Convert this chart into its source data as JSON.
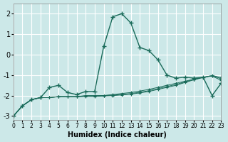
{
  "xlabel": "Humidex (Indice chaleur)",
  "bg_color": "#cce8e8",
  "grid_color": "#b8d8d8",
  "line_color": "#1a6b5a",
  "xlim": [
    0,
    23
  ],
  "ylim": [
    -3.2,
    2.5
  ],
  "yticks": [
    -3,
    -2,
    -1,
    0,
    1,
    2
  ],
  "series1_y": [
    -3.0,
    -2.5,
    -2.2,
    -2.1,
    -1.6,
    -1.5,
    -1.85,
    -1.95,
    -1.8,
    -1.8,
    0.4,
    1.85,
    2.0,
    1.55,
    0.35,
    0.2,
    -0.25,
    -1.0,
    -1.15,
    -1.1,
    -1.15,
    -1.1,
    -2.0,
    -1.4
  ],
  "series2_y": [
    -3.0,
    -2.5,
    -2.2,
    -2.1,
    -2.1,
    -2.05,
    -2.05,
    -2.05,
    -2.0,
    -2.0,
    -2.0,
    -1.95,
    -1.9,
    -1.85,
    -1.78,
    -1.7,
    -1.6,
    -1.5,
    -1.4,
    -1.3,
    -1.2,
    -1.1,
    -1.05,
    -1.25
  ],
  "series3_y": [
    -3.0,
    -2.5,
    -2.2,
    -2.1,
    -2.1,
    -2.05,
    -2.05,
    -2.05,
    -2.02,
    -2.02,
    -2.0,
    -1.98,
    -1.95,
    -1.9,
    -1.84,
    -1.76,
    -1.66,
    -1.56,
    -1.46,
    -1.33,
    -1.21,
    -1.11,
    -1.03,
    -1.18
  ],
  "series4_y": [
    -3.0,
    -2.5,
    -2.2,
    -2.1,
    -2.1,
    -2.05,
    -2.06,
    -2.06,
    -2.04,
    -2.04,
    -2.02,
    -2.0,
    -1.97,
    -1.93,
    -1.87,
    -1.8,
    -1.7,
    -1.6,
    -1.5,
    -1.36,
    -1.23,
    -1.12,
    -1.02,
    -1.12
  ]
}
